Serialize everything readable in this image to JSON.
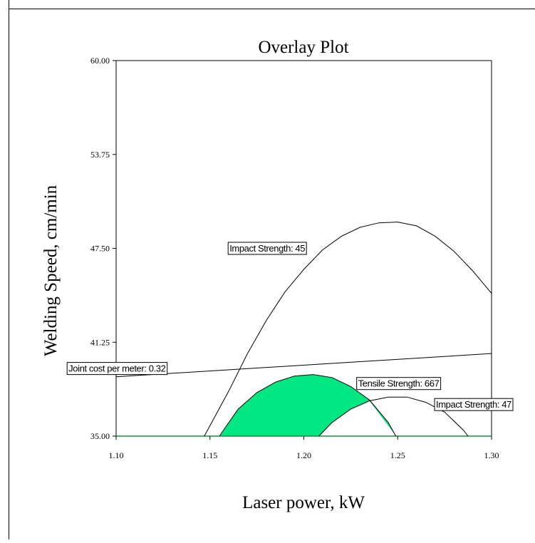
{
  "chart_data": {
    "type": "contour-overlay",
    "title": "Overlay Plot",
    "xlabel": "Laser power, kW",
    "ylabel": "Welding Speed, cm/min",
    "xlim": [
      1.1,
      1.3
    ],
    "ylim": [
      35.0,
      60.0
    ],
    "x_ticks": [
      "1.10",
      "1.15",
      "1.20",
      "1.25",
      "1.30"
    ],
    "y_ticks": [
      "35.00",
      "41.25",
      "47.50",
      "53.75",
      "60.00"
    ],
    "colors": {
      "feasible": "#00e680",
      "curve": "#000000",
      "frame": "#000000",
      "bottom_edge": "#1a8c3a"
    },
    "contours": [
      {
        "label": "Impact Strength: 45",
        "points": [
          [
            1.147,
            35.0
          ],
          [
            1.16,
            38.0
          ],
          [
            1.17,
            40.5
          ],
          [
            1.18,
            42.7
          ],
          [
            1.19,
            44.6
          ],
          [
            1.2,
            46.1
          ],
          [
            1.21,
            47.4
          ],
          [
            1.22,
            48.3
          ],
          [
            1.23,
            48.9
          ],
          [
            1.24,
            49.2
          ],
          [
            1.25,
            49.25
          ],
          [
            1.26,
            49.0
          ],
          [
            1.27,
            48.3
          ],
          [
            1.28,
            47.3
          ],
          [
            1.29,
            46.0
          ],
          [
            1.3,
            44.5
          ]
        ]
      },
      {
        "label": "Joint cost per meter: 0.32",
        "points": [
          [
            1.1,
            38.95
          ],
          [
            1.3,
            40.5
          ]
        ]
      },
      {
        "label": "Tensile Strength: 667",
        "points": [
          [
            1.155,
            35.0
          ],
          [
            1.165,
            36.8
          ],
          [
            1.175,
            37.9
          ],
          [
            1.185,
            38.6
          ],
          [
            1.195,
            39.0
          ],
          [
            1.205,
            39.1
          ],
          [
            1.215,
            38.9
          ],
          [
            1.225,
            38.3
          ],
          [
            1.235,
            37.4
          ],
          [
            1.245,
            35.9
          ],
          [
            1.249,
            35.0
          ]
        ]
      },
      {
        "label": "Impact Strength: 47",
        "points": [
          [
            1.208,
            35.0
          ],
          [
            1.215,
            35.9
          ],
          [
            1.225,
            36.8
          ],
          [
            1.235,
            37.35
          ],
          [
            1.245,
            37.6
          ],
          [
            1.255,
            37.6
          ],
          [
            1.265,
            37.25
          ],
          [
            1.275,
            36.6
          ],
          [
            1.285,
            35.4
          ],
          [
            1.2875,
            35.0
          ]
        ]
      }
    ],
    "annotations": [
      {
        "text": "Impact Strength: 45",
        "x": 1.1805,
        "y": 47.45
      },
      {
        "text": "Joint cost per meter: 0.32",
        "x": 1.1005,
        "y": 39.45
      },
      {
        "text": "Tensile Strength: 667",
        "x": 1.2505,
        "y": 38.45
      },
      {
        "text": "Impact Strength: 47",
        "x": 1.2905,
        "y": 37.05
      }
    ],
    "grid": false,
    "legend": "none"
  }
}
